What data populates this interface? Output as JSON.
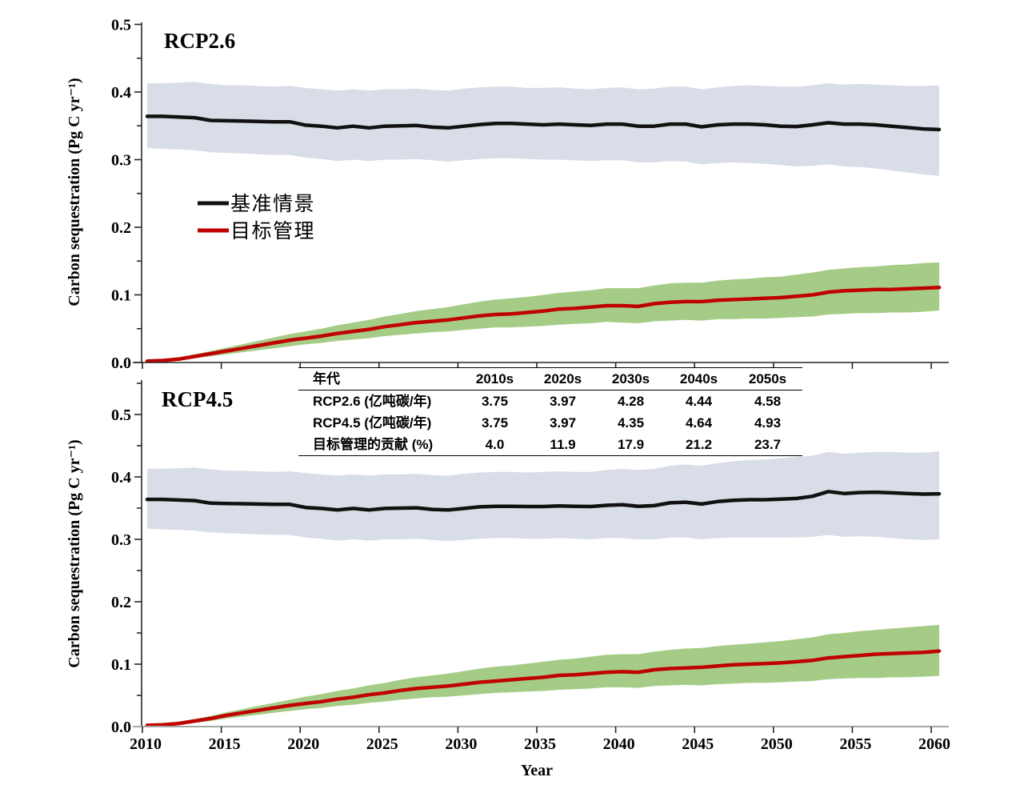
{
  "figure": {
    "background": "#ffffff",
    "ylabel": "Carbon sequestration (Pg C yr⁻¹)",
    "xlabel": "Year",
    "colors": {
      "baseline_line": "#111111",
      "baseline_band": "#d9dde7",
      "managed_line": "#c00000",
      "managed_band": "#a5cc86",
      "axis_dark": "#262626",
      "axis_light": "#a6a6a6"
    },
    "legend": [
      {
        "label": "基准情景",
        "color": "#111111"
      },
      {
        "label": "目标管理",
        "color": "#c00000"
      }
    ]
  },
  "chart_data": [
    {
      "type": "line",
      "title": "RCP2.6",
      "ylabel": "Carbon sequestration (Pg C yr⁻¹)",
      "xlim": [
        2010,
        2060
      ],
      "ylim": [
        0,
        0.5
      ],
      "grid": false,
      "legend_position": "left-middle",
      "xticks": [
        "2010",
        "2015",
        "2020",
        "2025",
        "2030",
        "2035",
        "2040",
        "2045",
        "2050",
        "2055",
        "2060"
      ],
      "yticks": [
        "0.0",
        "0.1",
        "0.2",
        "0.3",
        "0.4",
        "0.5"
      ],
      "years": [
        2010,
        2011,
        2012,
        2013,
        2014,
        2015,
        2016,
        2017,
        2018,
        2019,
        2020,
        2021,
        2022,
        2023,
        2024,
        2025,
        2026,
        2027,
        2028,
        2029,
        2030,
        2031,
        2032,
        2033,
        2034,
        2035,
        2036,
        2037,
        2038,
        2039,
        2040,
        2041,
        2042,
        2043,
        2044,
        2045,
        2046,
        2047,
        2048,
        2049,
        2050,
        2051,
        2052,
        2053,
        2054,
        2055,
        2056,
        2057,
        2058,
        2059,
        2060
      ],
      "bands": [
        {
          "name": "基准情景不确定性区间",
          "color": "#d9dde7",
          "upper": [
            0.413,
            0.413,
            0.414,
            0.415,
            0.412,
            0.41,
            0.41,
            0.409,
            0.408,
            0.409,
            0.406,
            0.404,
            0.402,
            0.404,
            0.402,
            0.404,
            0.404,
            0.405,
            0.403,
            0.402,
            0.405,
            0.407,
            0.408,
            0.408,
            0.406,
            0.406,
            0.407,
            0.405,
            0.404,
            0.406,
            0.407,
            0.404,
            0.405,
            0.408,
            0.408,
            0.404,
            0.407,
            0.409,
            0.41,
            0.409,
            0.408,
            0.408,
            0.41,
            0.413,
            0.411,
            0.412,
            0.411,
            0.41,
            0.409,
            0.409,
            0.41
          ],
          "lower": [
            0.317,
            0.316,
            0.315,
            0.314,
            0.311,
            0.31,
            0.309,
            0.308,
            0.307,
            0.307,
            0.303,
            0.301,
            0.298,
            0.3,
            0.298,
            0.3,
            0.3,
            0.301,
            0.299,
            0.297,
            0.299,
            0.301,
            0.302,
            0.302,
            0.301,
            0.3,
            0.3,
            0.299,
            0.298,
            0.299,
            0.299,
            0.296,
            0.296,
            0.298,
            0.297,
            0.293,
            0.295,
            0.296,
            0.295,
            0.294,
            0.292,
            0.29,
            0.291,
            0.293,
            0.29,
            0.289,
            0.287,
            0.284,
            0.281,
            0.278,
            0.276
          ]
        },
        {
          "name": "目标管理不确定性区间",
          "color": "#a5cc86",
          "upper": [
            0.003,
            0.005,
            0.008,
            0.012,
            0.017,
            0.022,
            0.027,
            0.032,
            0.037,
            0.042,
            0.046,
            0.05,
            0.055,
            0.059,
            0.063,
            0.068,
            0.072,
            0.076,
            0.079,
            0.082,
            0.086,
            0.09,
            0.093,
            0.095,
            0.097,
            0.1,
            0.103,
            0.105,
            0.107,
            0.11,
            0.11,
            0.11,
            0.114,
            0.117,
            0.118,
            0.118,
            0.121,
            0.123,
            0.124,
            0.126,
            0.127,
            0.13,
            0.133,
            0.137,
            0.139,
            0.141,
            0.142,
            0.144,
            0.145,
            0.147,
            0.148
          ],
          "lower": [
            0.001,
            0.002,
            0.003,
            0.006,
            0.009,
            0.012,
            0.015,
            0.018,
            0.021,
            0.024,
            0.027,
            0.029,
            0.032,
            0.034,
            0.036,
            0.039,
            0.041,
            0.043,
            0.045,
            0.046,
            0.048,
            0.05,
            0.052,
            0.052,
            0.053,
            0.054,
            0.056,
            0.057,
            0.058,
            0.06,
            0.059,
            0.058,
            0.061,
            0.062,
            0.063,
            0.062,
            0.064,
            0.064,
            0.065,
            0.065,
            0.066,
            0.067,
            0.068,
            0.071,
            0.072,
            0.073,
            0.073,
            0.074,
            0.074,
            0.075,
            0.077
          ]
        }
      ],
      "lines": [
        {
          "name": "基准情景",
          "color": "#111111",
          "values": [
            0.364,
            0.364,
            0.363,
            0.362,
            0.358,
            0.3575,
            0.357,
            0.3565,
            0.356,
            0.356,
            0.351,
            0.3495,
            0.347,
            0.3495,
            0.347,
            0.3495,
            0.35,
            0.3505,
            0.348,
            0.347,
            0.3495,
            0.352,
            0.3535,
            0.3535,
            0.3525,
            0.3515,
            0.3525,
            0.3515,
            0.3505,
            0.3525,
            0.3525,
            0.3495,
            0.3495,
            0.3525,
            0.3525,
            0.3485,
            0.3515,
            0.3525,
            0.3525,
            0.3515,
            0.3495,
            0.349,
            0.3515,
            0.3545,
            0.3525,
            0.3525,
            0.3515,
            0.3495,
            0.3475,
            0.3455,
            0.3445
          ]
        },
        {
          "name": "目标管理",
          "color": "#c00000",
          "values": [
            0.002,
            0.003,
            0.005,
            0.009,
            0.013,
            0.017,
            0.021,
            0.025,
            0.029,
            0.033,
            0.036,
            0.039,
            0.043,
            0.046,
            0.049,
            0.053,
            0.056,
            0.059,
            0.061,
            0.063,
            0.066,
            0.069,
            0.071,
            0.072,
            0.074,
            0.076,
            0.079,
            0.08,
            0.082,
            0.084,
            0.084,
            0.083,
            0.087,
            0.089,
            0.09,
            0.09,
            0.092,
            0.093,
            0.094,
            0.095,
            0.096,
            0.098,
            0.1,
            0.104,
            0.106,
            0.107,
            0.108,
            0.108,
            0.109,
            0.11,
            0.111
          ]
        }
      ]
    },
    {
      "type": "line",
      "title": "RCP4.5",
      "ylabel": "Carbon sequestration (Pg C yr⁻¹)",
      "xlabel": "Year",
      "xlim": [
        2010,
        2060
      ],
      "ylim": [
        0,
        0.5
      ],
      "grid": false,
      "xticks": [
        "2010",
        "2015",
        "2020",
        "2025",
        "2030",
        "2035",
        "2040",
        "2045",
        "2050",
        "2055",
        "2060"
      ],
      "yticks": [
        "0.0",
        "0.1",
        "0.2",
        "0.3",
        "0.4",
        "0.5"
      ],
      "years": [
        2010,
        2011,
        2012,
        2013,
        2014,
        2015,
        2016,
        2017,
        2018,
        2019,
        2020,
        2021,
        2022,
        2023,
        2024,
        2025,
        2026,
        2027,
        2028,
        2029,
        2030,
        2031,
        2032,
        2033,
        2034,
        2035,
        2036,
        2037,
        2038,
        2039,
        2040,
        2041,
        2042,
        2043,
        2044,
        2045,
        2046,
        2047,
        2048,
        2049,
        2050,
        2051,
        2052,
        2053,
        2054,
        2055,
        2056,
        2057,
        2058,
        2059,
        2060
      ],
      "bands": [
        {
          "name": "基准情景不确定性区间",
          "color": "#d9dde7",
          "upper": [
            0.413,
            0.413,
            0.414,
            0.415,
            0.412,
            0.41,
            0.41,
            0.409,
            0.408,
            0.409,
            0.406,
            0.404,
            0.402,
            0.404,
            0.402,
            0.404,
            0.404,
            0.405,
            0.403,
            0.402,
            0.405,
            0.407,
            0.408,
            0.408,
            0.407,
            0.408,
            0.409,
            0.408,
            0.408,
            0.411,
            0.413,
            0.411,
            0.413,
            0.418,
            0.42,
            0.418,
            0.422,
            0.425,
            0.427,
            0.428,
            0.43,
            0.432,
            0.434,
            0.44,
            0.437,
            0.439,
            0.44,
            0.44,
            0.439,
            0.439,
            0.441
          ],
          "lower": [
            0.317,
            0.316,
            0.315,
            0.314,
            0.311,
            0.31,
            0.309,
            0.308,
            0.307,
            0.307,
            0.303,
            0.301,
            0.298,
            0.3,
            0.298,
            0.3,
            0.3,
            0.301,
            0.299,
            0.297,
            0.299,
            0.301,
            0.302,
            0.302,
            0.301,
            0.301,
            0.302,
            0.301,
            0.3,
            0.302,
            0.302,
            0.3,
            0.3,
            0.303,
            0.303,
            0.3,
            0.302,
            0.303,
            0.303,
            0.303,
            0.303,
            0.303,
            0.304,
            0.307,
            0.304,
            0.305,
            0.304,
            0.302,
            0.3,
            0.299,
            0.3
          ]
        },
        {
          "name": "目标管理不确定性区间",
          "color": "#a5cc86",
          "upper": [
            0.003,
            0.005,
            0.008,
            0.012,
            0.017,
            0.023,
            0.028,
            0.033,
            0.038,
            0.043,
            0.048,
            0.052,
            0.057,
            0.061,
            0.066,
            0.07,
            0.075,
            0.079,
            0.082,
            0.085,
            0.089,
            0.093,
            0.096,
            0.098,
            0.101,
            0.104,
            0.107,
            0.109,
            0.112,
            0.115,
            0.116,
            0.116,
            0.12,
            0.123,
            0.125,
            0.126,
            0.129,
            0.131,
            0.133,
            0.135,
            0.137,
            0.14,
            0.143,
            0.148,
            0.15,
            0.153,
            0.155,
            0.157,
            0.159,
            0.161,
            0.163
          ],
          "lower": [
            0.001,
            0.002,
            0.003,
            0.006,
            0.009,
            0.013,
            0.016,
            0.019,
            0.022,
            0.025,
            0.028,
            0.03,
            0.033,
            0.035,
            0.038,
            0.04,
            0.043,
            0.045,
            0.047,
            0.048,
            0.05,
            0.052,
            0.054,
            0.055,
            0.056,
            0.057,
            0.059,
            0.06,
            0.061,
            0.063,
            0.063,
            0.062,
            0.065,
            0.066,
            0.067,
            0.066,
            0.068,
            0.069,
            0.07,
            0.07,
            0.071,
            0.072,
            0.073,
            0.076,
            0.077,
            0.078,
            0.078,
            0.079,
            0.079,
            0.08,
            0.081
          ]
        }
      ],
      "lines": [
        {
          "name": "基准情景",
          "color": "#111111",
          "values": [
            0.364,
            0.364,
            0.363,
            0.362,
            0.358,
            0.3575,
            0.357,
            0.3565,
            0.356,
            0.356,
            0.351,
            0.3495,
            0.347,
            0.3495,
            0.347,
            0.3495,
            0.35,
            0.3505,
            0.348,
            0.347,
            0.3495,
            0.352,
            0.353,
            0.353,
            0.3525,
            0.3525,
            0.3535,
            0.353,
            0.3525,
            0.3545,
            0.3555,
            0.353,
            0.354,
            0.3585,
            0.3595,
            0.3565,
            0.3605,
            0.3625,
            0.3635,
            0.3635,
            0.3645,
            0.3655,
            0.369,
            0.3765,
            0.3735,
            0.375,
            0.3755,
            0.3745,
            0.3735,
            0.3725,
            0.373
          ]
        },
        {
          "name": "目标管理",
          "color": "#c00000",
          "values": [
            0.002,
            0.003,
            0.005,
            0.009,
            0.013,
            0.018,
            0.022,
            0.026,
            0.03,
            0.034,
            0.037,
            0.04,
            0.044,
            0.047,
            0.051,
            0.054,
            0.058,
            0.061,
            0.063,
            0.065,
            0.068,
            0.071,
            0.073,
            0.075,
            0.077,
            0.079,
            0.082,
            0.083,
            0.085,
            0.087,
            0.088,
            0.087,
            0.091,
            0.093,
            0.094,
            0.095,
            0.097,
            0.099,
            0.1,
            0.101,
            0.102,
            0.104,
            0.106,
            0.11,
            0.112,
            0.114,
            0.116,
            0.117,
            0.118,
            0.119,
            0.121
          ]
        }
      ]
    },
    {
      "type": "table",
      "header": [
        "年代",
        "2010s",
        "2020s",
        "2030s",
        "2040s",
        "2050s"
      ],
      "rows": [
        {
          "label": "RCP2.6 (亿吨碳/年)",
          "values": [
            "3.75",
            "3.97",
            "4.28",
            "4.44",
            "4.58"
          ]
        },
        {
          "label": "RCP4.5 (亿吨碳/年)",
          "values": [
            "3.75",
            "3.97",
            "4.35",
            "4.64",
            "4.93"
          ]
        },
        {
          "label": "目标管理的贡献 (%)",
          "values": [
            "4.0",
            "11.9",
            "17.9",
            "21.2",
            "23.7"
          ]
        }
      ]
    }
  ]
}
